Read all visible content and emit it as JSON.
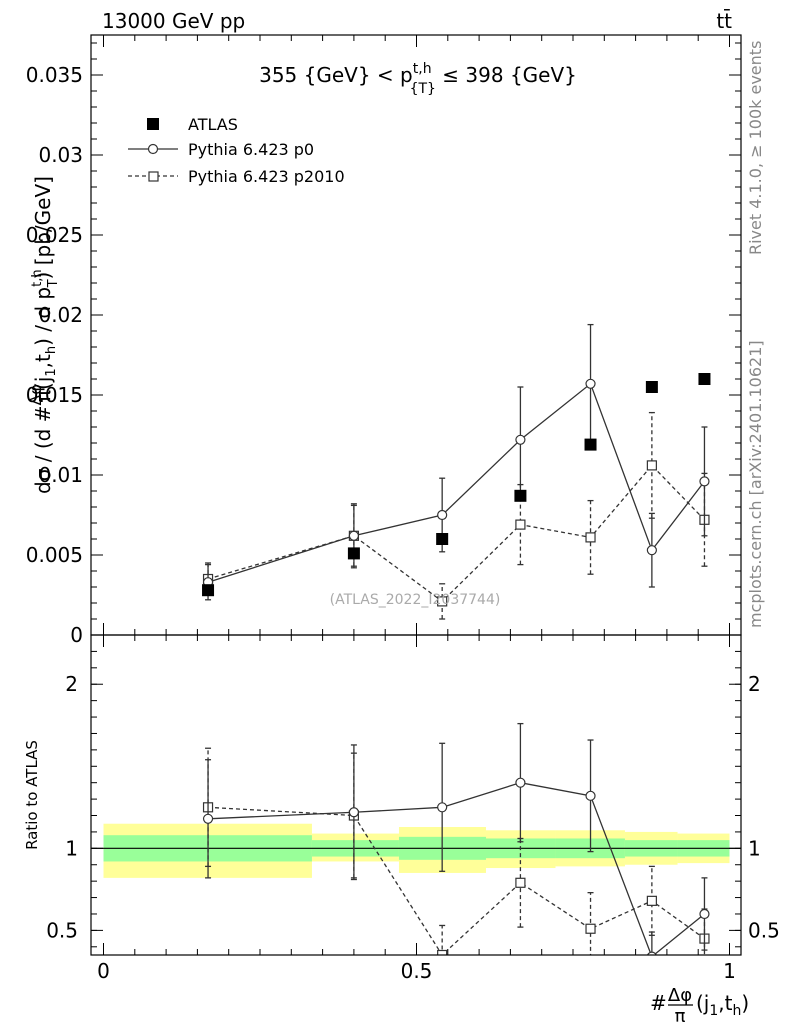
{
  "header": {
    "left": "13000 GeV pp",
    "right": "tt̄"
  },
  "side_texts": {
    "rivet": "Rivet 4.1.0, ≥ 100k events",
    "mcplots": "mcplots.cern.ch [arXiv:2401.10621]"
  },
  "colors": {
    "data": "#000000",
    "mc": "#333333",
    "band_inner": "#99ff99",
    "band_outer": "#ffff99",
    "watermark": "#aaaaaa"
  },
  "chart_data": [
    {
      "type": "scatter",
      "title": "355 {GeV} < p^{t,h}_{T} ≤ 398 {GeV}",
      "title_parts": {
        "pre": "355 {GeV} < p",
        "sup": "t,h",
        "sub": "{T}",
        "post": " ≤ 398 {GeV}"
      },
      "ylabel": "dσ / (d #Δφ/π(j₁,t_h) / d p_T^{t,h}) [pb/GeV]",
      "xlabel": "#Δφ/π(j₁,t_h)",
      "xlim": [
        0,
        1
      ],
      "ylim": [
        0,
        0.0375
      ],
      "yticks": [
        0,
        0.005,
        0.01,
        0.015,
        0.02,
        0.025,
        0.03,
        0.035
      ],
      "ytick_labels": [
        "0",
        "0.005",
        "0.01",
        "0.015",
        "0.02",
        "0.025",
        "0.03",
        "0.035"
      ],
      "watermark": "(ATLAS_2022_I2037744)",
      "legend": [
        "ATLAS",
        "Pythia 6.423 p0",
        "Pythia 6.423 p2010"
      ],
      "bins": [
        [
          0,
          0.333
        ],
        [
          0.333,
          0.472
        ],
        [
          0.472,
          0.611
        ],
        [
          0.611,
          0.722
        ],
        [
          0.722,
          0.833
        ],
        [
          0.833,
          0.917
        ],
        [
          0.917,
          1.0
        ]
      ],
      "x": [
        0.167,
        0.4,
        0.541,
        0.666,
        0.778,
        0.876,
        0.96
      ],
      "series": [
        {
          "name": "ATLAS",
          "marker": "filled-square",
          "values": [
            0.0028,
            0.0051,
            0.006,
            0.0087,
            0.0119,
            0.0155,
            0.016
          ]
        },
        {
          "name": "Pythia 6.423 p0",
          "marker": "open-circle",
          "line": "solid",
          "values": [
            0.0033,
            0.0062,
            0.0075,
            0.0122,
            0.0157,
            0.0053,
            0.0096
          ],
          "err": [
            0.0011,
            0.002,
            0.0023,
            0.0033,
            0.0037,
            0.0023,
            0.0034
          ]
        },
        {
          "name": "Pythia 6.423 p2010",
          "marker": "open-square",
          "line": "dashed",
          "values": [
            0.0035,
            0.0062,
            0.0021,
            0.0069,
            0.0061,
            0.0106,
            0.0072
          ],
          "err": [
            0.001,
            0.0019,
            0.0011,
            0.0025,
            0.0023,
            0.0033,
            0.0029
          ]
        }
      ]
    },
    {
      "type": "scatter",
      "title": "ratio",
      "ylabel": "Ratio to ATLAS",
      "xlim": [
        0,
        1
      ],
      "ylim": [
        0.35,
        2.3
      ],
      "yticks": [
        0.5,
        1,
        2
      ],
      "ytick_labels": [
        "0.5",
        "1",
        "2"
      ],
      "xticks": [
        0,
        0.5,
        1
      ],
      "xtick_labels": [
        "0",
        "0.5",
        "1"
      ],
      "band_inner": [
        [
          0.92,
          1.08
        ],
        [
          0.95,
          1.05
        ],
        [
          0.93,
          1.07
        ],
        [
          0.94,
          1.06
        ],
        [
          0.94,
          1.06
        ],
        [
          0.95,
          1.05
        ],
        [
          0.95,
          1.05
        ]
      ],
      "band_outer": [
        [
          0.82,
          1.15
        ],
        [
          0.92,
          1.09
        ],
        [
          0.85,
          1.13
        ],
        [
          0.88,
          1.11
        ],
        [
          0.89,
          1.11
        ],
        [
          0.9,
          1.1
        ],
        [
          0.91,
          1.09
        ]
      ],
      "series": [
        {
          "name": "Pythia 6.423 p0",
          "values": [
            1.18,
            1.22,
            1.25,
            1.4,
            1.32,
            0.34,
            0.6
          ],
          "err": [
            0.36,
            0.41,
            0.39,
            0.36,
            0.34,
            0.15,
            0.22
          ]
        },
        {
          "name": "Pythia 6.423 p2010",
          "values": [
            1.25,
            1.2,
            0.35,
            0.79,
            0.51,
            0.68,
            0.45
          ],
          "err": [
            0.36,
            0.38,
            0.18,
            0.27,
            0.22,
            0.21,
            0.18
          ]
        }
      ]
    }
  ]
}
